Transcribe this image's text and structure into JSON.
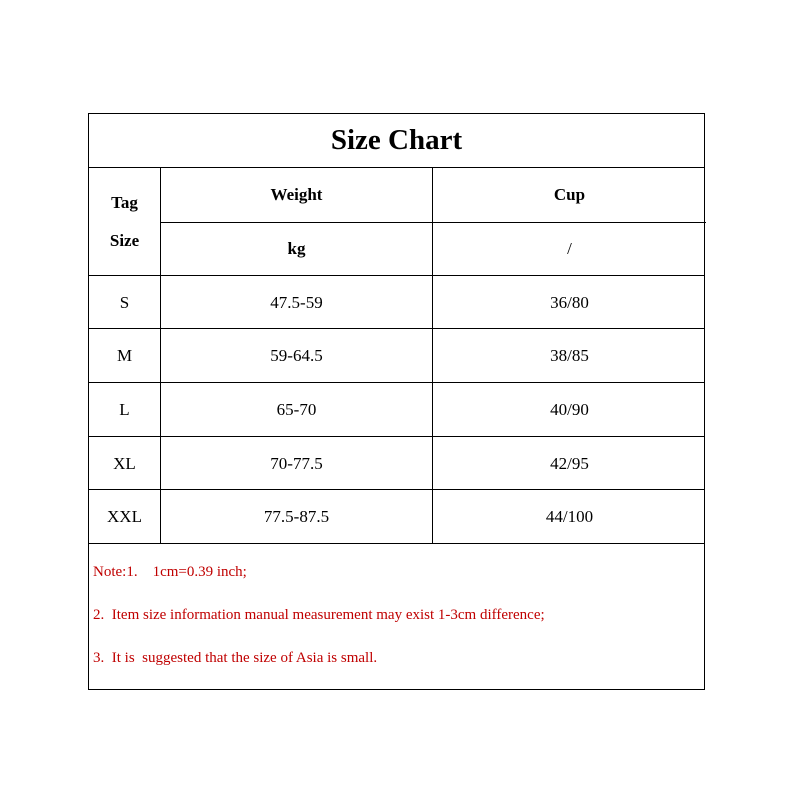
{
  "title": "Size Chart",
  "headers": {
    "tag_size": [
      "Tag",
      "Size"
    ],
    "weight": "Weight",
    "weight_unit": "kg",
    "cup": "Cup",
    "cup_unit": "/"
  },
  "rows": [
    {
      "size": "S",
      "weight": "47.5-59",
      "cup": "36/80"
    },
    {
      "size": "M",
      "weight": "59-64.5",
      "cup": "38/85"
    },
    {
      "size": "L",
      "weight": "65-70",
      "cup": "40/90"
    },
    {
      "size": "XL",
      "weight": "70-77.5",
      "cup": "42/95"
    },
    {
      "size": "XXL",
      "weight": "77.5-87.5",
      "cup": "44/100"
    }
  ],
  "notes": [
    "Note:1.    1cm=0.39 inch;",
    "2.  Item size information manual measurement may exist 1-3cm difference;",
    "3.  It is  suggested that the size of Asia is small."
  ],
  "colors": {
    "note_text": "#c00000",
    "border": "#000000"
  }
}
